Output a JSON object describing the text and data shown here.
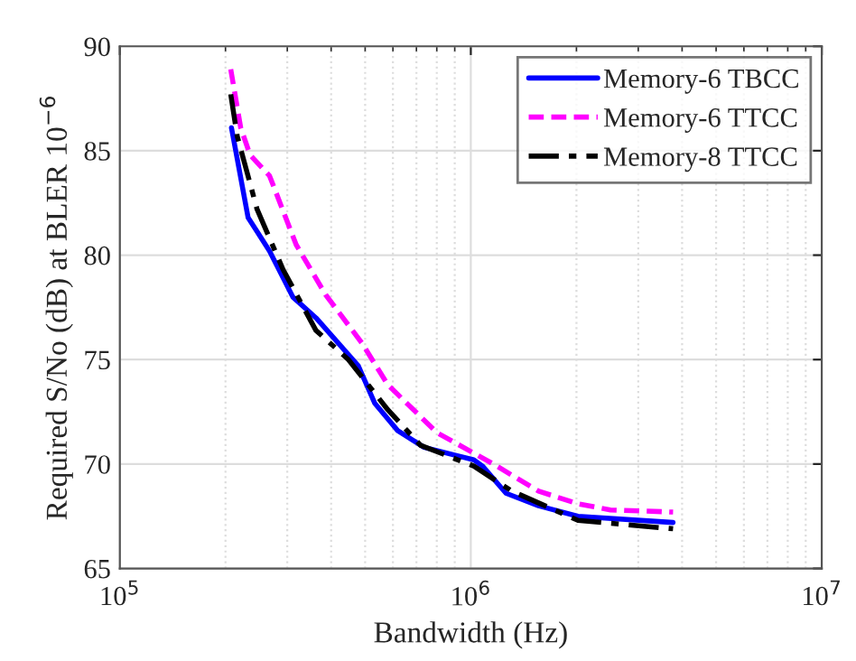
{
  "chart_data": {
    "type": "line",
    "xlabel": "Bandwidth (Hz)",
    "ylabel": "Required S/No (dB) at BLER 10$^{−6}$",
    "log": "x",
    "grid": true,
    "legend": "top right",
    "xlim": [
      100000,
      10000000
    ],
    "xticks": [
      {
        "value": 100000,
        "label": "10$^{5}$"
      },
      {
        "value": 1000000,
        "label": "10$^{6}$"
      },
      {
        "value": 10000000,
        "label": "10$^{7}$"
      }
    ],
    "ylim": [
      65,
      90
    ],
    "yticks": [
      65,
      70,
      75,
      80,
      85,
      90
    ],
    "series": [
      {
        "name": "Memory-6 TBCC",
        "color": "#0000ff",
        "line_style": "solid",
        "x": [
          208000,
          232000,
          267000,
          311000,
          362000,
          478000,
          533000,
          619000,
          736000,
          1020000,
          1080000,
          1260000,
          1560000,
          2020000,
          3770000
        ],
        "values": [
          86.1,
          81.8,
          80.2,
          78.0,
          77.0,
          74.7,
          72.9,
          71.6,
          70.8,
          70.2,
          69.9,
          68.6,
          68.0,
          67.5,
          67.2
        ]
      },
      {
        "name": "Memory-6 TTCC",
        "color": "#ff00ff",
        "line_style": "dashed",
        "x": [
          207000,
          221000,
          235000,
          267000,
          318000,
          386000,
          489000,
          580000,
          801000,
          1160000,
          1560000,
          2020000,
          2500000,
          3770000
        ],
        "values": [
          88.9,
          86.1,
          84.8,
          83.8,
          80.5,
          78.1,
          75.8,
          73.8,
          71.5,
          70.0,
          68.7,
          68.1,
          67.8,
          67.7
        ]
      },
      {
        "name": "Memory-8 TTCC",
        "color": "#000000",
        "line_style": "dashdot",
        "x": [
          207000,
          216000,
          246000,
          292000,
          362000,
          448000,
          580000,
          719000,
          1020000,
          1310000,
          2020000,
          3770000
        ],
        "values": [
          87.7,
          85.7,
          82.2,
          79.3,
          76.4,
          75.0,
          72.6,
          70.9,
          69.9,
          68.7,
          67.3,
          66.9
        ]
      }
    ]
  }
}
